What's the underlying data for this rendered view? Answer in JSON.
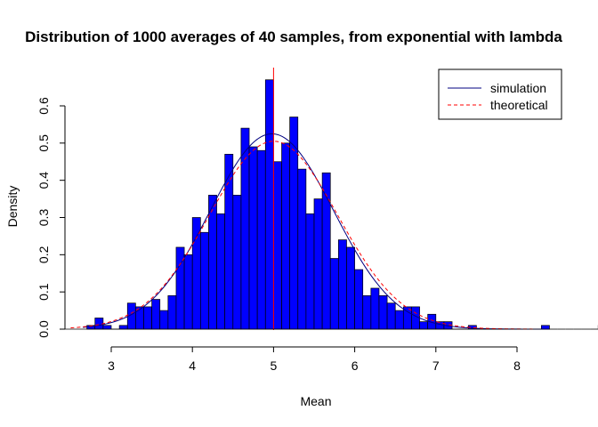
{
  "chart_data": {
    "type": "bar",
    "title": "Distribution of 1000 averages of 40 samples, from exponential with lambda",
    "xlabel": "Mean",
    "ylabel": "Density",
    "xlim": [
      2.5,
      8.5
    ],
    "ylim": [
      0,
      0.67
    ],
    "xticks": [
      3,
      4,
      5,
      6,
      7,
      8
    ],
    "xtick_labels": [
      "3",
      "4",
      "5",
      "6",
      "7",
      "8"
    ],
    "yticks": [
      0.0,
      0.1,
      0.2,
      0.3,
      0.4,
      0.5,
      0.6
    ],
    "ytick_labels": [
      "0.0",
      "0.1",
      "0.2",
      "0.3",
      "0.4",
      "0.5",
      "0.6"
    ],
    "bin_width": 0.1,
    "bin_start": 2.7,
    "bar_values": [
      0.01,
      0.03,
      0.01,
      0.0,
      0.01,
      0.07,
      0.06,
      0.06,
      0.08,
      0.05,
      0.09,
      0.22,
      0.2,
      0.3,
      0.26,
      0.36,
      0.31,
      0.47,
      0.36,
      0.54,
      0.49,
      0.48,
      0.67,
      0.45,
      0.5,
      0.57,
      0.43,
      0.31,
      0.35,
      0.42,
      0.19,
      0.24,
      0.22,
      0.16,
      0.09,
      0.11,
      0.09,
      0.07,
      0.05,
      0.06,
      0.06,
      0.02,
      0.04,
      0.02,
      0.02,
      0.0,
      0.0,
      0.01,
      0.0,
      0.0,
      0.0,
      0.0,
      0.0,
      0.0,
      0.0,
      0.0,
      0.01,
      0.0,
      0.0,
      0.0,
      0.0,
      0.0,
      0.0,
      0.01
    ],
    "bar_fill": "#0000ff",
    "vertical_line": {
      "x": 5.0,
      "color": "#ff0000"
    },
    "series": [
      {
        "name": "simulation",
        "kind": "density",
        "mean": 4.98,
        "sd": 0.76,
        "color": "#000080",
        "dash": "solid",
        "from": 2.65,
        "to": 8.4
      },
      {
        "name": "theoretical",
        "kind": "normal",
        "mean": 5.0,
        "sd": 0.79,
        "color": "#ff0000",
        "dash": "dashed",
        "from": 2.5,
        "to": 8.2
      }
    ],
    "legend": {
      "position": "top-right",
      "entries": [
        "simulation",
        "theoretical"
      ]
    }
  }
}
